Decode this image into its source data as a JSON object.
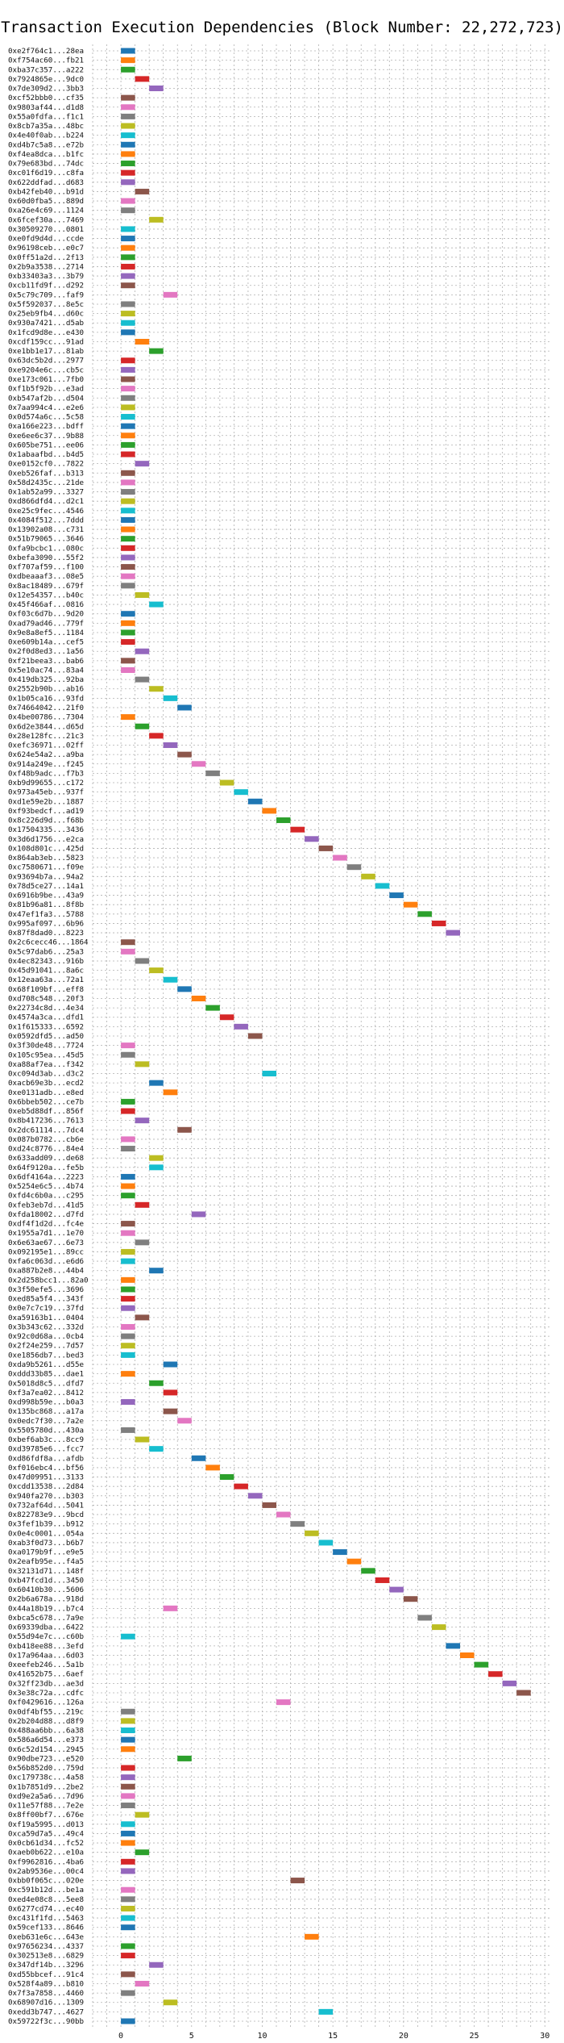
{
  "chart_data": {
    "type": "bar",
    "orientation": "horizontal",
    "title": "Transaction Execution Dependencies (Block Number: 22,272,723)",
    "xlabel": "",
    "ylabel": "",
    "xlim": [
      -2,
      30.5
    ],
    "x_ticks": [
      0,
      5,
      10,
      15,
      20,
      25,
      30
    ],
    "grid": true,
    "bar_width": 1,
    "palette": [
      "#1f77b4",
      "#ff7f0e",
      "#2ca02c",
      "#d62728",
      "#9467bd",
      "#8c564b",
      "#e377c2",
      "#7f7f7f",
      "#bcbd22",
      "#17becf"
    ],
    "transactions": [
      {
        "hash": "0xe2f764c1...28ea",
        "start": 0
      },
      {
        "hash": "0xf754ac60...fb21",
        "start": 0
      },
      {
        "hash": "0xba37c357...a222",
        "start": 0
      },
      {
        "hash": "0x7924865e...9dc0",
        "start": 1
      },
      {
        "hash": "0x7de309d2...3bb3",
        "start": 2
      },
      {
        "hash": "0xcf52bbb0...cf35",
        "start": 0
      },
      {
        "hash": "0x9803af44...d1d8",
        "start": 0
      },
      {
        "hash": "0x55a0fdfa...f1c1",
        "start": 0
      },
      {
        "hash": "0x8cb7a35a...48bc",
        "start": 0
      },
      {
        "hash": "0x4e40f0ab...b224",
        "start": 0
      },
      {
        "hash": "0xd4b7c5a8...e72b",
        "start": 0
      },
      {
        "hash": "0xf4ea8dca...b1fc",
        "start": 0
      },
      {
        "hash": "0x79e683bd...74dc",
        "start": 0
      },
      {
        "hash": "0xc01f6d19...c8fa",
        "start": 0
      },
      {
        "hash": "0x622ddfad...d683",
        "start": 0
      },
      {
        "hash": "0xb42feb40...b91d",
        "start": 1
      },
      {
        "hash": "0x60d0fba5...889d",
        "start": 0
      },
      {
        "hash": "0xa26e4c69...1124",
        "start": 0
      },
      {
        "hash": "0x6fcef30a...7469",
        "start": 2
      },
      {
        "hash": "0x30509270...0801",
        "start": 0
      },
      {
        "hash": "0xe0fd9d4d...ccde",
        "start": 0
      },
      {
        "hash": "0x96198ceb...e0c7",
        "start": 0
      },
      {
        "hash": "0x0ff51a2d...2f13",
        "start": 0
      },
      {
        "hash": "0x2b9a3538...2714",
        "start": 0
      },
      {
        "hash": "0xb33403a3...3b79",
        "start": 0
      },
      {
        "hash": "0xcb11fd9f...d292",
        "start": 0
      },
      {
        "hash": "0x5c79c709...faf9",
        "start": 3
      },
      {
        "hash": "0x5f592037...8e5c",
        "start": 0
      },
      {
        "hash": "0x25eb9fb4...d60c",
        "start": 0
      },
      {
        "hash": "0x930a7421...d5ab",
        "start": 0
      },
      {
        "hash": "0x1fcd9d8e...e430",
        "start": 0
      },
      {
        "hash": "0xcdf159cc...91ad",
        "start": 1
      },
      {
        "hash": "0xe1bb1e17...81ab",
        "start": 2
      },
      {
        "hash": "0x63dc5b2d...2977",
        "start": 0
      },
      {
        "hash": "0xe9204e6c...cb5c",
        "start": 0
      },
      {
        "hash": "0xe173c061...7fb0",
        "start": 0
      },
      {
        "hash": "0xf1b5f92b...e3ad",
        "start": 0
      },
      {
        "hash": "0xb547af2b...d504",
        "start": 0
      },
      {
        "hash": "0x7aa994c4...e2e6",
        "start": 0
      },
      {
        "hash": "0x0d574a6c...5c58",
        "start": 0
      },
      {
        "hash": "0xa166e223...bdff",
        "start": 0
      },
      {
        "hash": "0xe6ee6c37...9b88",
        "start": 0
      },
      {
        "hash": "0x605be751...ee06",
        "start": 0
      },
      {
        "hash": "0x1abaafbd...b4d5",
        "start": 0
      },
      {
        "hash": "0xe0152cf0...7822",
        "start": 1
      },
      {
        "hash": "0xeb526faf...b313",
        "start": 0
      },
      {
        "hash": "0x58d2435c...21de",
        "start": 0
      },
      {
        "hash": "0x1ab52a99...3327",
        "start": 0
      },
      {
        "hash": "0xd866dfd4...d2c1",
        "start": 0
      },
      {
        "hash": "0xe25c9fec...4546",
        "start": 0
      },
      {
        "hash": "0x4084f512...7ddd",
        "start": 0
      },
      {
        "hash": "0x13902a08...c731",
        "start": 0
      },
      {
        "hash": "0x51b79065...3646",
        "start": 0
      },
      {
        "hash": "0xfa9bcbc1...080c",
        "start": 0
      },
      {
        "hash": "0xbefa3090...55f2",
        "start": 0
      },
      {
        "hash": "0xf707af59...f100",
        "start": 0
      },
      {
        "hash": "0xdbeaaaf3...08e5",
        "start": 0
      },
      {
        "hash": "0x8ac18489...679f",
        "start": 0
      },
      {
        "hash": "0x12e54357...b40c",
        "start": 1
      },
      {
        "hash": "0x45f466af...0816",
        "start": 2
      },
      {
        "hash": "0xf03c6d7b...9d20",
        "start": 0
      },
      {
        "hash": "0xad79ad46...779f",
        "start": 0
      },
      {
        "hash": "0x9e8a8ef5...1184",
        "start": 0
      },
      {
        "hash": "0xe609b14a...cef5",
        "start": 0
      },
      {
        "hash": "0x2f0d8ed3...1a56",
        "start": 1
      },
      {
        "hash": "0xf21beea3...bab6",
        "start": 0
      },
      {
        "hash": "0x5e10ac74...83a4",
        "start": 0
      },
      {
        "hash": "0x419db325...92ba",
        "start": 1
      },
      {
        "hash": "0x2552b90b...ab16",
        "start": 2
      },
      {
        "hash": "0x1b05ca16...93fd",
        "start": 3
      },
      {
        "hash": "0x74664042...21f0",
        "start": 4
      },
      {
        "hash": "0x4be00786...7304",
        "start": 0
      },
      {
        "hash": "0x6d2e3844...d65d",
        "start": 1
      },
      {
        "hash": "0x28e128fc...21c3",
        "start": 2
      },
      {
        "hash": "0xefc36971...02ff",
        "start": 3
      },
      {
        "hash": "0x624e54a2...a9ba",
        "start": 4
      },
      {
        "hash": "0x914a249e...f245",
        "start": 5
      },
      {
        "hash": "0xf48b9adc...f7b3",
        "start": 6
      },
      {
        "hash": "0xb9d99655...c172",
        "start": 7
      },
      {
        "hash": "0x973a45eb...937f",
        "start": 8
      },
      {
        "hash": "0xd1e59e2b...1887",
        "start": 9
      },
      {
        "hash": "0xf93bedcf...ad19",
        "start": 10
      },
      {
        "hash": "0x8c226d9d...f68b",
        "start": 11
      },
      {
        "hash": "0x17504335...3436",
        "start": 12
      },
      {
        "hash": "0x3d6d1756...e2ca",
        "start": 13
      },
      {
        "hash": "0x108d801c...425d",
        "start": 14
      },
      {
        "hash": "0x864ab3eb...5823",
        "start": 15
      },
      {
        "hash": "0xc7580671...f09e",
        "start": 16
      },
      {
        "hash": "0x93694b7a...94a2",
        "start": 17
      },
      {
        "hash": "0x78d5ce27...14a1",
        "start": 18
      },
      {
        "hash": "0x6916b9be...43a9",
        "start": 19
      },
      {
        "hash": "0x81b96a81...8f8b",
        "start": 20
      },
      {
        "hash": "0x47ef1fa3...5788",
        "start": 21
      },
      {
        "hash": "0x995af097...6b96",
        "start": 22
      },
      {
        "hash": "0x87f8dad0...8223",
        "start": 23
      },
      {
        "hash": "0x2c6cecc46...1864",
        "start": 0
      },
      {
        "hash": "0x5c97dab6...25a3",
        "start": 0
      },
      {
        "hash": "0x4ec82343...916b",
        "start": 1
      },
      {
        "hash": "0x45d91041...8a6c",
        "start": 2
      },
      {
        "hash": "0x12eaa63a...72a1",
        "start": 3
      },
      {
        "hash": "0x68f109bf...eff8",
        "start": 4
      },
      {
        "hash": "0xd708c548...20f3",
        "start": 5
      },
      {
        "hash": "0x22734c8d...4e34",
        "start": 6
      },
      {
        "hash": "0x4574a3ca...dfd1",
        "start": 7
      },
      {
        "hash": "0x1f615333...6592",
        "start": 8
      },
      {
        "hash": "0x0592dfd5...ad50",
        "start": 9
      },
      {
        "hash": "0x3f30de48...7724",
        "start": 0
      },
      {
        "hash": "0x105c95ea...45d5",
        "start": 0
      },
      {
        "hash": "0xa88af7ea...f342",
        "start": 1
      },
      {
        "hash": "0xc094d3ab...d3c2",
        "start": 10
      },
      {
        "hash": "0xacb69e3b...ecd2",
        "start": 2
      },
      {
        "hash": "0xe0131adb...e8ed",
        "start": 3
      },
      {
        "hash": "0x6bbeb502...ce7b",
        "start": 0
      },
      {
        "hash": "0xeb5d88df...856f",
        "start": 0
      },
      {
        "hash": "0x8b417236...7613",
        "start": 1
      },
      {
        "hash": "0x2dc61114...7dc4",
        "start": 4
      },
      {
        "hash": "0x087b0782...cb6e",
        "start": 0
      },
      {
        "hash": "0xd24c8776...84e4",
        "start": 0
      },
      {
        "hash": "0x633add09...de68",
        "start": 2
      },
      {
        "hash": "0x64f9120a...fe5b",
        "start": 2
      },
      {
        "hash": "0x6df4164a...2223",
        "start": 0
      },
      {
        "hash": "0x5254e6c5...4b74",
        "start": 0
      },
      {
        "hash": "0xfd4c6b0a...c295",
        "start": 0
      },
      {
        "hash": "0xfeb3eb7d...41d5",
        "start": 1
      },
      {
        "hash": "0xfda18002...d7fd",
        "start": 5
      },
      {
        "hash": "0xdf4f1d2d...fc4e",
        "start": 0
      },
      {
        "hash": "0x1955a7d1...1e70",
        "start": 0
      },
      {
        "hash": "0x6e63ae67...6e73",
        "start": 1
      },
      {
        "hash": "0x092195e1...89cc",
        "start": 0
      },
      {
        "hash": "0xfa6c063d...e6d6",
        "start": 0
      },
      {
        "hash": "0xa887b2e8...44b4",
        "start": 2
      },
      {
        "hash": "0x2d258bcc1...82a0",
        "start": 0
      },
      {
        "hash": "0x3f50efe5...3696",
        "start": 0
      },
      {
        "hash": "0xed85a5f4...343f",
        "start": 0
      },
      {
        "hash": "0x0e7c7c19...37fd",
        "start": 0
      },
      {
        "hash": "0xa59163b1...0404",
        "start": 1
      },
      {
        "hash": "0x3b343c62...332d",
        "start": 0
      },
      {
        "hash": "0x92c0d68a...0cb4",
        "start": 0
      },
      {
        "hash": "0x2f24e259...7d57",
        "start": 0
      },
      {
        "hash": "0xe1856db7...bed3",
        "start": 0
      },
      {
        "hash": "0xda9b5261...d55e",
        "start": 3
      },
      {
        "hash": "0xddd33b85...dae1",
        "start": 0
      },
      {
        "hash": "0x5018d8c5...dfd7",
        "start": 2
      },
      {
        "hash": "0xf3a7ea02...8412",
        "start": 3
      },
      {
        "hash": "0xd998b59e...b0a3",
        "start": 0
      },
      {
        "hash": "0x135bc868...a17a",
        "start": 3
      },
      {
        "hash": "0x0edc7f30...7a2e",
        "start": 4
      },
      {
        "hash": "0x5505780d...430a",
        "start": 0
      },
      {
        "hash": "0xbef6ab3c...8cc9",
        "start": 1
      },
      {
        "hash": "0xd39785e6...fcc7",
        "start": 2
      },
      {
        "hash": "0xd86fdf8a...afdb",
        "start": 5
      },
      {
        "hash": "0xf016ebc4...bf56",
        "start": 6
      },
      {
        "hash": "0x47d09951...3133",
        "start": 7
      },
      {
        "hash": "0xcdd13538...2d84",
        "start": 8
      },
      {
        "hash": "0x940fa270...b303",
        "start": 9
      },
      {
        "hash": "0x732af64d...5041",
        "start": 10
      },
      {
        "hash": "0x822783e9...9bcd",
        "start": 11
      },
      {
        "hash": "0x3fef1b39...b912",
        "start": 12
      },
      {
        "hash": "0x0e4c0001...054a",
        "start": 13
      },
      {
        "hash": "0xab3f0d73...b6b7",
        "start": 14
      },
      {
        "hash": "0xa0179b9f...e9e5",
        "start": 15
      },
      {
        "hash": "0x2eafb95e...f4a5",
        "start": 16
      },
      {
        "hash": "0x32131d71...148f",
        "start": 17
      },
      {
        "hash": "0xb47fcd1d...3450",
        "start": 18
      },
      {
        "hash": "0x60410b30...5606",
        "start": 19
      },
      {
        "hash": "0x2b6a678a...918d",
        "start": 20
      },
      {
        "hash": "0x44a18b19...b7c4",
        "start": 3
      },
      {
        "hash": "0xbca5c678...7a9e",
        "start": 21
      },
      {
        "hash": "0x69339dba...6422",
        "start": 22
      },
      {
        "hash": "0x55d94e7c...c60b",
        "start": 0
      },
      {
        "hash": "0xb418ee88...3efd",
        "start": 23
      },
      {
        "hash": "0x17a964aa...6d03",
        "start": 24
      },
      {
        "hash": "0xeefeb246...5a1b",
        "start": 25
      },
      {
        "hash": "0x41652b75...6aef",
        "start": 26
      },
      {
        "hash": "0x32ff23db...ae3d",
        "start": 27
      },
      {
        "hash": "0x3e38c72a...cdfc",
        "start": 28
      },
      {
        "hash": "0xf0429616...126a",
        "start": 11
      },
      {
        "hash": "0x0df4bf55...219c",
        "start": 0
      },
      {
        "hash": "0x2b204d88...d8f9",
        "start": 0
      },
      {
        "hash": "0x488aa6bb...6a38",
        "start": 0
      },
      {
        "hash": "0x586a6d54...e373",
        "start": 0
      },
      {
        "hash": "0x6c52d154...2945",
        "start": 0
      },
      {
        "hash": "0x90dbe723...e520",
        "start": 4
      },
      {
        "hash": "0x56b852d0...759d",
        "start": 0
      },
      {
        "hash": "0xc179738c...4a58",
        "start": 0
      },
      {
        "hash": "0x1b7851d9...2be2",
        "start": 0
      },
      {
        "hash": "0xd9e2a5a6...7d96",
        "start": 0
      },
      {
        "hash": "0x11e57f88...7e2e",
        "start": 0
      },
      {
        "hash": "0x8ff00bf7...676e",
        "start": 1
      },
      {
        "hash": "0xf19a5995...d013",
        "start": 0
      },
      {
        "hash": "0xca59d7a5...49c4",
        "start": 0
      },
      {
        "hash": "0x0cb61d34...fc52",
        "start": 0
      },
      {
        "hash": "0xaeb0b622...e10a",
        "start": 1
      },
      {
        "hash": "0xf9962816...4ba6",
        "start": 0
      },
      {
        "hash": "0x2ab9536e...00c4",
        "start": 0
      },
      {
        "hash": "0xbb0f065c...020e",
        "start": 12
      },
      {
        "hash": "0xc591b12d...be1a",
        "start": 0
      },
      {
        "hash": "0xed4e08c8...5ee8",
        "start": 0
      },
      {
        "hash": "0x6277cd74...ec40",
        "start": 0
      },
      {
        "hash": "0xc431f1fd...5463",
        "start": 0
      },
      {
        "hash": "0x59cef133...8646",
        "start": 0
      },
      {
        "hash": "0xeb631e6c...643e",
        "start": 13
      },
      {
        "hash": "0x97656234...4337",
        "start": 0
      },
      {
        "hash": "0x302513e8...6829",
        "start": 0
      },
      {
        "hash": "0x347df14b...3296",
        "start": 2
      },
      {
        "hash": "0xd55bbcef...91c4",
        "start": 0
      },
      {
        "hash": "0x528f4a89...b810",
        "start": 1
      },
      {
        "hash": "0x7f3a7858...4460",
        "start": 0
      },
      {
        "hash": "0x68907d16...1309",
        "start": 3
      },
      {
        "hash": "0xedd3b747...4627",
        "start": 14
      },
      {
        "hash": "0x59722f3c...90bb",
        "start": 0
      }
    ]
  }
}
